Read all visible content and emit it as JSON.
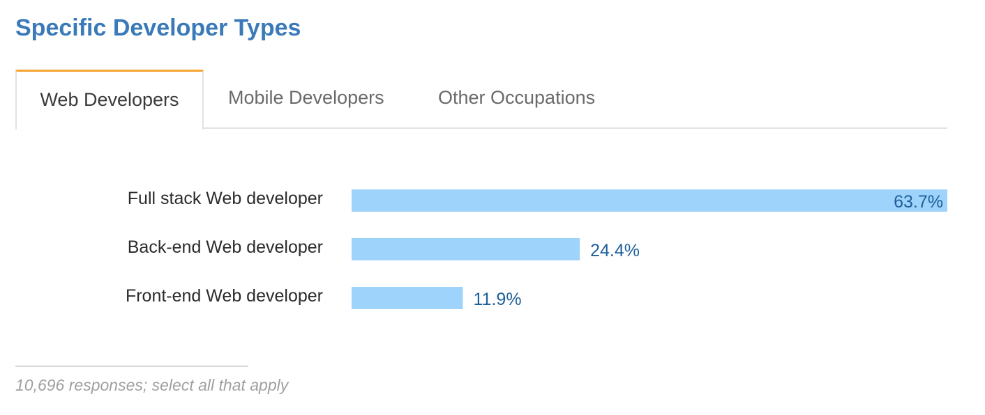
{
  "header": {
    "title": "Specific Developer Types"
  },
  "tabs": [
    {
      "label": "Web Developers",
      "active": true
    },
    {
      "label": "Mobile Developers",
      "active": false
    },
    {
      "label": "Other Occupations",
      "active": false
    }
  ],
  "colors": {
    "title": "#3b7ab8",
    "tab_accent": "#f6a532",
    "bar": "#9ed3fb",
    "value_label": "#1f5f99"
  },
  "chart_data": {
    "type": "bar",
    "orientation": "horizontal",
    "categories": [
      "Full stack Web developer",
      "Back-end Web developer",
      "Front-end Web developer"
    ],
    "values": [
      63.7,
      24.4,
      11.9
    ],
    "value_labels": [
      "63.7%",
      "24.4%",
      "11.9%"
    ],
    "xlim": [
      0,
      63.7
    ],
    "grid": false,
    "legend": "none"
  },
  "footer": {
    "note": "10,696 responses; select all that apply"
  }
}
